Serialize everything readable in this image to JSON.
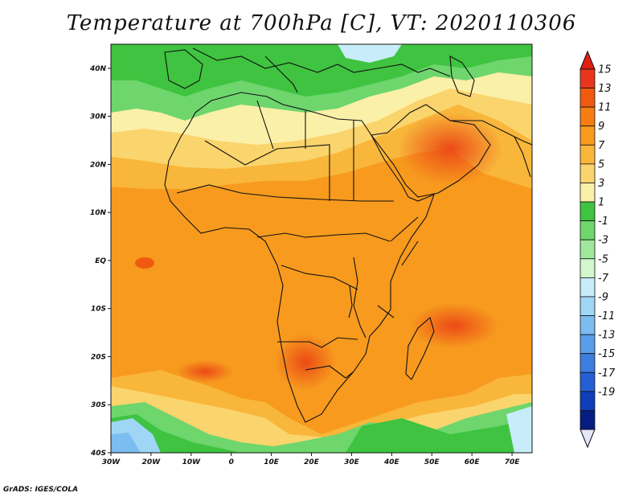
{
  "title": "Temperature at 700hPa [C], VT: 2020110306",
  "credit": "GrADS: IGES/COLA",
  "map": {
    "projection": "lat-lon",
    "lon_range": [
      -30,
      75
    ],
    "lat_range": [
      -40,
      45
    ],
    "x_ticks": [
      {
        "value": -30,
        "label": "30W"
      },
      {
        "value": -20,
        "label": "20W"
      },
      {
        "value": -10,
        "label": "10W"
      },
      {
        "value": 0,
        "label": "0"
      },
      {
        "value": 10,
        "label": "10E"
      },
      {
        "value": 20,
        "label": "20E"
      },
      {
        "value": 30,
        "label": "30E"
      },
      {
        "value": 40,
        "label": "40E"
      },
      {
        "value": 50,
        "label": "50E"
      },
      {
        "value": 60,
        "label": "60E"
      },
      {
        "value": 70,
        "label": "70E"
      }
    ],
    "y_ticks": [
      {
        "value": 40,
        "label": "40N"
      },
      {
        "value": 30,
        "label": "30N"
      },
      {
        "value": 20,
        "label": "20N"
      },
      {
        "value": 10,
        "label": "10N"
      },
      {
        "value": 0,
        "label": "EQ"
      },
      {
        "value": -10,
        "label": "10S"
      },
      {
        "value": -20,
        "label": "20S"
      },
      {
        "value": -30,
        "label": "30S"
      },
      {
        "value": -40,
        "label": "40S"
      }
    ],
    "boundary_color": "#111111"
  },
  "colorbar": {
    "levels": [
      "15",
      "13",
      "11",
      "9",
      "7",
      "5",
      "3",
      "1",
      "-1",
      "-3",
      "-5",
      "-7",
      "-9",
      "-11",
      "-13",
      "-15",
      "-17",
      "-19"
    ],
    "colors": [
      "#e8361c",
      "#f05a10",
      "#f57d12",
      "#f79a1e",
      "#f8b63a",
      "#fad46c",
      "#fbf0a8",
      "#3fc340",
      "#6ed66d",
      "#a0e89b",
      "#d2f7cf",
      "#c8ecf9",
      "#9fd6f5",
      "#7bbcf1",
      "#5a9de9",
      "#3d7ddf",
      "#245fd3",
      "#0f3fb8",
      "#061c80"
    ],
    "top_color": "#e02010",
    "bottom_color": "#e6e6fa"
  }
}
